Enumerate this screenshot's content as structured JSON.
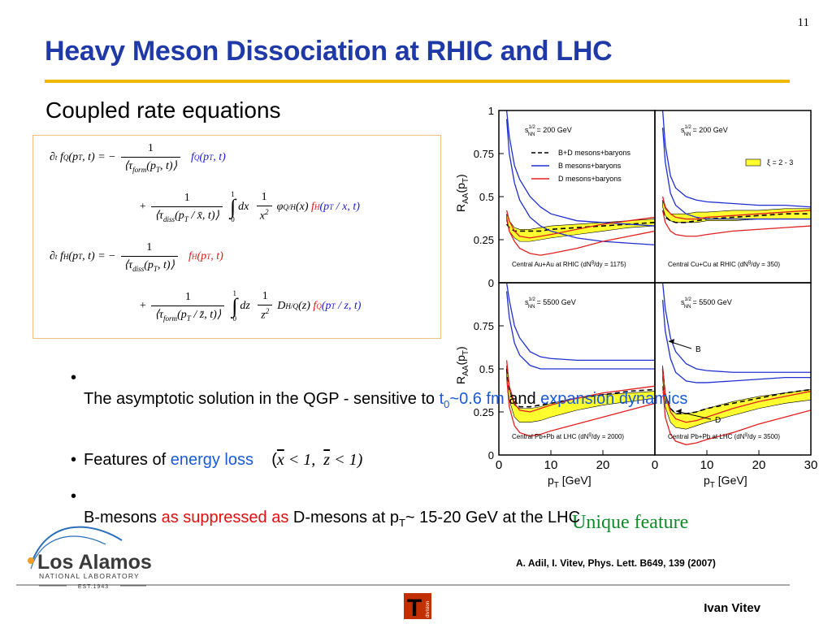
{
  "page_number": "11",
  "title": "Heavy Meson Dissociation at RHIC and LHC",
  "subtitle": "Coupled rate equations",
  "equations": [
    [
      {
        "text": "∂"
      },
      {
        "text": "t",
        "sub": true
      },
      {
        "text": " f"
      },
      {
        "text": "Q",
        "sup": true
      },
      {
        "text": "(p"
      },
      {
        "text": "T",
        "sub": true
      },
      {
        "text": ", t) = −"
      },
      {
        "frac": {
          "num": [
            {
              "text": "1"
            }
          ],
          "den": [
            {
              "text": "⟨τ"
            },
            {
              "text": "form",
              "sub": true
            },
            {
              "text": "(p"
            },
            {
              "text": "T",
              "sub": true
            },
            {
              "text": ", t)⟩"
            }
          ]
        }
      },
      {
        "text": "  f",
        "color": "#1a1ad8"
      },
      {
        "text": "Q",
        "sup": true,
        "color": "#1a1ad8"
      },
      {
        "text": "(p",
        "color": "#1a1ad8"
      },
      {
        "text": "T",
        "sub": true,
        "color": "#1a1ad8"
      },
      {
        "text": ", t)",
        "color": "#1a1ad8"
      }
    ],
    [
      {
        "text": "+"
      },
      {
        "frac": {
          "num": [
            {
              "text": "1"
            }
          ],
          "den": [
            {
              "text": "⟨τ"
            },
            {
              "text": "diss",
              "sub": true
            },
            {
              "text": "(p"
            },
            {
              "text": "T",
              "sub": true
            },
            {
              "text": " / x̄, t)⟩"
            }
          ]
        }
      },
      {
        "int": {
          "upper": "1",
          "sign": "∫",
          "lower": "0"
        }
      },
      {
        "text": "dx "
      },
      {
        "frac": {
          "num": [
            {
              "text": "1"
            }
          ],
          "den": [
            {
              "text": "x"
            },
            {
              "text": "2",
              "sup": true
            }
          ]
        }
      },
      {
        "text": "φ"
      },
      {
        "text": "Q/H",
        "sub": true
      },
      {
        "text": "(x) "
      },
      {
        "text": "f",
        "color": "#d81a1a"
      },
      {
        "text": "H",
        "sup": true,
        "color": "#d81a1a"
      },
      {
        "text": "(p",
        "color": "#1a1ad8"
      },
      {
        "text": "T",
        "sub": true,
        "color": "#1a1ad8"
      },
      {
        "text": " / x, t)",
        "color": "#1a1ad8"
      }
    ],
    [
      {
        "text": "∂"
      },
      {
        "text": "t",
        "sub": true
      },
      {
        "text": " f"
      },
      {
        "text": "H",
        "sup": true
      },
      {
        "text": "(p"
      },
      {
        "text": "T",
        "sub": true
      },
      {
        "text": ", t) = −"
      },
      {
        "frac": {
          "num": [
            {
              "text": "1"
            }
          ],
          "den": [
            {
              "text": "⟨τ"
            },
            {
              "text": "diss",
              "sub": true
            },
            {
              "text": "(p"
            },
            {
              "text": "T",
              "sub": true
            },
            {
              "text": ", t)⟩"
            }
          ]
        }
      },
      {
        "text": "  f",
        "color": "#d81a1a"
      },
      {
        "text": "H",
        "sup": true,
        "color": "#d81a1a"
      },
      {
        "text": "(p",
        "color": "#d81a1a"
      },
      {
        "text": "T",
        "sub": true,
        "color": "#d81a1a"
      },
      {
        "text": ", t)",
        "color": "#d81a1a"
      }
    ],
    [
      {
        "text": "+"
      },
      {
        "frac": {
          "num": [
            {
              "text": "1"
            }
          ],
          "den": [
            {
              "text": "⟨τ"
            },
            {
              "text": "form",
              "sub": true
            },
            {
              "text": "(p"
            },
            {
              "text": "T",
              "sub": true
            },
            {
              "text": " / z̄, t)⟩"
            }
          ]
        }
      },
      {
        "int": {
          "upper": "1",
          "sign": "∫",
          "lower": "0"
        }
      },
      {
        "text": "dz "
      },
      {
        "frac": {
          "num": [
            {
              "text": "1"
            }
          ],
          "den": [
            {
              "text": "z"
            },
            {
              "text": "2",
              "sup": true
            }
          ]
        }
      },
      {
        "text": "D"
      },
      {
        "text": "H/Q",
        "sub": true
      },
      {
        "text": "(z) "
      },
      {
        "text": "f",
        "color": "#d81a1a"
      },
      {
        "text": "Q",
        "sup": true,
        "color": "#d81a1a"
      },
      {
        "text": "(p",
        "color": "#1a1ad8"
      },
      {
        "text": "T",
        "sub": true,
        "color": "#1a1ad8"
      },
      {
        "text": " / z, t)",
        "color": "#1a1ad8"
      }
    ]
  ],
  "bullets": [
    [
      {
        "text": "The asymptotic solution in the QGP - sensitive to "
      },
      {
        "text": "t",
        "color": "#1a5ad8"
      },
      {
        "text": "0",
        "sub": true,
        "color": "#1a5ad8"
      },
      {
        "text": "~0.6 fm",
        "color": "#1a5ad8"
      },
      {
        "text": " and "
      },
      {
        "text": "expansion dynamics",
        "color": "#1a5ad8"
      }
    ],
    [
      {
        "text": "Features of "
      },
      {
        "text": "energy loss",
        "color": "#1a5ad8"
      },
      {
        "text": "    ("
      },
      {
        "text": "x",
        "overline": true,
        "math": true
      },
      {
        "text": " < 1,  ",
        "math": true
      },
      {
        "text": "z",
        "overline": true,
        "math": true
      },
      {
        "text": " < 1)",
        "math": true
      }
    ],
    [
      {
        "text": "B-mesons "
      },
      {
        "text": "as suppressed as",
        "color": "#e01010"
      },
      {
        "text": " D-mesons at p"
      },
      {
        "text": "T",
        "sub": true
      },
      {
        "text": "~ 15-20 GeV at the LHC"
      }
    ]
  ],
  "figure_caption": "Unique feature",
  "reference": "A. Adil, I. Vitev, Phys. Lett. B649, 139 (2007)",
  "author": "Ivan Vitev",
  "logo": {
    "name": "Los Alamos",
    "sub": "NATIONAL LABORATORY",
    "est": "EST.1943"
  },
  "division_logo": {
    "letter": "T",
    "word": "division"
  },
  "chart_data": [
    {
      "type": "line",
      "x": [
        1.5,
        2,
        3,
        4,
        6,
        8,
        10,
        15,
        20,
        25,
        30
      ],
      "xlim": [
        0,
        30
      ],
      "ylim": [
        0,
        1
      ],
      "yticks": [
        0,
        0.25,
        0.5,
        0.75,
        1
      ],
      "y_label": {
        "a": "R",
        "b": "AA",
        "c": "(p",
        "d": "T",
        "e": ")"
      },
      "energy": {
        "s": "s",
        "exp": "1/2",
        "sub": "NN",
        "text": "= 200 GeV"
      },
      "system": {
        "pre": "Central Au+Au at RHIC (dN",
        "sup": "g",
        "post": "/dy = 1175)"
      },
      "band": {
        "color": "#ffff30",
        "values": [
          0.4,
          0.36,
          0.32,
          0.31,
          0.31,
          0.32,
          0.33,
          0.34,
          0.35,
          0.36,
          0.37
        ],
        "values_low": [
          0.36,
          0.3,
          0.26,
          0.24,
          0.24,
          0.25,
          0.26,
          0.28,
          0.3,
          0.32,
          0.33
        ]
      },
      "series": [
        {
          "name": "B+D mesons+baryons",
          "color": "#000000",
          "dashed": true,
          "values": [
            0.34,
            0.32,
            0.3,
            0.3,
            0.3,
            0.3,
            0.31,
            0.32,
            0.33,
            0.34,
            0.35
          ]
        },
        {
          "name": "B mesons+baryons",
          "color": "#2030d0",
          "values": [
            1.0,
            0.85,
            0.68,
            0.6,
            0.5,
            0.44,
            0.4,
            0.36,
            0.35,
            0.34,
            0.33
          ],
          "values_low": [
            0.95,
            0.75,
            0.58,
            0.48,
            0.38,
            0.33,
            0.3,
            0.26,
            0.24,
            0.23,
            0.22
          ]
        },
        {
          "name": "D mesons+baryons",
          "color": "#e02020",
          "values": [
            0.42,
            0.36,
            0.3,
            0.27,
            0.26,
            0.27,
            0.28,
            0.31,
            0.34,
            0.36,
            0.38
          ],
          "values_low": [
            0.38,
            0.3,
            0.24,
            0.2,
            0.17,
            0.16,
            0.17,
            0.2,
            0.24,
            0.27,
            0.3
          ]
        }
      ]
    },
    {
      "type": "line",
      "x": [
        1.5,
        2,
        3,
        4,
        6,
        8,
        10,
        15,
        20,
        25,
        30
      ],
      "xlim": [
        0,
        30
      ],
      "ylim": [
        0,
        1
      ],
      "energy": {
        "s": "s",
        "exp": "1/2",
        "sub": "NN",
        "text": "= 200 GeV"
      },
      "system": {
        "pre": "Central Cu+Cu at RHIC (dN",
        "sup": "g",
        "post": "/dy = 350)"
      },
      "band": {
        "name": "ξ = 2 - 3",
        "color": "#ffff30",
        "values": [
          0.48,
          0.43,
          0.4,
          0.4,
          0.4,
          0.41,
          0.41,
          0.42,
          0.42,
          0.43,
          0.43
        ],
        "values_low": [
          0.44,
          0.39,
          0.36,
          0.35,
          0.35,
          0.35,
          0.36,
          0.36,
          0.37,
          0.37,
          0.37
        ]
      },
      "series": [
        {
          "color": "#000000",
          "dashed": true,
          "values": [
            0.42,
            0.38,
            0.36,
            0.35,
            0.35,
            0.36,
            0.37,
            0.38,
            0.39,
            0.4,
            0.4
          ]
        },
        {
          "color": "#2030d0",
          "values": [
            1.0,
            0.8,
            0.62,
            0.55,
            0.5,
            0.48,
            0.47,
            0.46,
            0.45,
            0.45,
            0.44
          ],
          "values_low": [
            0.9,
            0.7,
            0.52,
            0.45,
            0.4,
            0.38,
            0.37,
            0.37,
            0.37,
            0.37,
            0.37
          ]
        },
        {
          "color": "#e02020",
          "values": [
            0.5,
            0.44,
            0.4,
            0.38,
            0.37,
            0.37,
            0.38,
            0.39,
            0.4,
            0.41,
            0.42
          ],
          "values_low": [
            0.42,
            0.35,
            0.3,
            0.28,
            0.27,
            0.27,
            0.28,
            0.3,
            0.31,
            0.32,
            0.33
          ]
        }
      ]
    },
    {
      "type": "line",
      "x": [
        1.5,
        2,
        3,
        4,
        6,
        8,
        10,
        15,
        20,
        25,
        30
      ],
      "xlim": [
        0,
        30
      ],
      "ylim": [
        0,
        1
      ],
      "yticks": [
        0,
        0.25,
        0.5,
        0.75
      ],
      "xticks": [
        0,
        10,
        20
      ],
      "y_label": {
        "a": "R",
        "b": "AA",
        "c": "(p",
        "d": "T",
        "e": ")"
      },
      "x_label": {
        "a": "p",
        "b": "T",
        "c": " [GeV]"
      },
      "energy": {
        "s": "s",
        "exp": "1/2",
        "sub": "NN",
        "text": "= 5500 GeV"
      },
      "system": {
        "pre": "Central Pb+Pb at LHC (dN",
        "sup": "g",
        "post": "/dy = 2000)"
      },
      "band": {
        "color": "#ffff30",
        "values": [
          0.52,
          0.38,
          0.29,
          0.27,
          0.27,
          0.28,
          0.3,
          0.33,
          0.35,
          0.36,
          0.37
        ],
        "values_low": [
          0.45,
          0.32,
          0.22,
          0.19,
          0.19,
          0.2,
          0.22,
          0.26,
          0.29,
          0.31,
          0.33
        ]
      },
      "series": [
        {
          "color": "#000000",
          "dashed": true,
          "values": [
            0.5,
            0.38,
            0.3,
            0.28,
            0.28,
            0.29,
            0.3,
            0.33,
            0.35,
            0.37,
            0.38
          ]
        },
        {
          "color": "#2030d0",
          "values": [
            1.0,
            0.9,
            0.75,
            0.68,
            0.6,
            0.57,
            0.56,
            0.55,
            0.55,
            0.55,
            0.55
          ],
          "values_low": [
            0.95,
            0.8,
            0.65,
            0.58,
            0.52,
            0.5,
            0.5,
            0.5,
            0.5,
            0.5,
            0.5
          ]
        },
        {
          "color": "#e02020",
          "values": [
            0.55,
            0.4,
            0.3,
            0.26,
            0.25,
            0.27,
            0.29,
            0.33,
            0.36,
            0.38,
            0.4
          ],
          "values_low": [
            0.45,
            0.28,
            0.17,
            0.13,
            0.11,
            0.12,
            0.14,
            0.18,
            0.22,
            0.26,
            0.3
          ]
        }
      ]
    },
    {
      "type": "line",
      "x": [
        1.5,
        2,
        3,
        4,
        6,
        8,
        10,
        15,
        20,
        25,
        30
      ],
      "xlim": [
        0,
        30
      ],
      "ylim": [
        0,
        1
      ],
      "xticks": [
        0,
        10,
        20,
        30
      ],
      "x_label": {
        "a": "p",
        "b": "T",
        "c": " [GeV]"
      },
      "energy": {
        "s": "s",
        "exp": "1/2",
        "sub": "NN",
        "text": "= 5500 GeV"
      },
      "system": {
        "pre": "Central Pb+Pb at LHC (dN",
        "sup": "g",
        "post": "/dy = 3500)"
      },
      "annotations": [
        "B",
        "D"
      ],
      "band": {
        "color": "#ffff30",
        "values": [
          0.52,
          0.36,
          0.27,
          0.24,
          0.24,
          0.25,
          0.27,
          0.31,
          0.34,
          0.36,
          0.38
        ],
        "values_low": [
          0.44,
          0.28,
          0.19,
          0.16,
          0.15,
          0.17,
          0.19,
          0.23,
          0.27,
          0.3,
          0.32
        ]
      },
      "series": [
        {
          "color": "#000000",
          "dashed": true,
          "values": [
            0.5,
            0.35,
            0.27,
            0.24,
            0.24,
            0.25,
            0.27,
            0.3,
            0.33,
            0.36,
            0.38
          ]
        },
        {
          "color": "#2030d0",
          "values": [
            1.0,
            0.85,
            0.68,
            0.6,
            0.53,
            0.5,
            0.49,
            0.48,
            0.48,
            0.48,
            0.48
          ],
          "values_low": [
            0.9,
            0.72,
            0.56,
            0.48,
            0.43,
            0.42,
            0.42,
            0.43,
            0.44,
            0.45,
            0.45
          ]
        },
        {
          "color": "#e02020",
          "values": [
            0.5,
            0.35,
            0.25,
            0.21,
            0.19,
            0.2,
            0.22,
            0.27,
            0.31,
            0.34,
            0.37
          ],
          "values_low": [
            0.4,
            0.22,
            0.12,
            0.08,
            0.06,
            0.07,
            0.09,
            0.13,
            0.18,
            0.22,
            0.26
          ]
        }
      ]
    }
  ]
}
